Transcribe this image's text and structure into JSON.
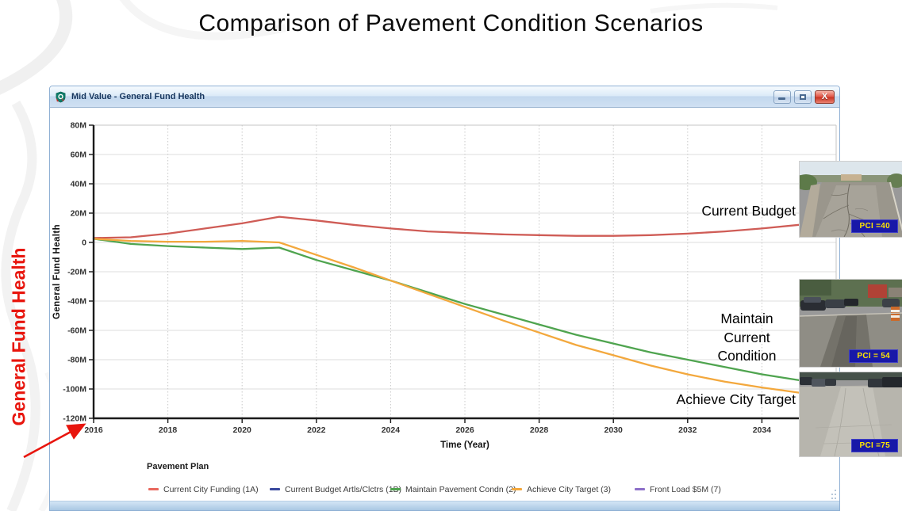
{
  "slide": {
    "title": "Comparison of Pavement Condition Scenarios",
    "side_callout": "General Fund Health"
  },
  "window": {
    "title": "Mid Value - General Fund Health",
    "close_glyph": "X"
  },
  "chart_data": {
    "type": "line",
    "xlabel": "Time (Year)",
    "ylabel": "General Fund Health",
    "xlim": [
      2016,
      2036
    ],
    "ylim": [
      -120,
      80
    ],
    "grid": true,
    "x_tick_years": [
      2016,
      2018,
      2020,
      2022,
      2024,
      2026,
      2028,
      2030,
      2032,
      2034
    ],
    "y_tick_values": [
      80,
      60,
      40,
      20,
      0,
      -20,
      -40,
      -60,
      -80,
      -100,
      -120
    ],
    "y_tick_labels": [
      "80M",
      "60M",
      "40M",
      "20M",
      "0",
      "-20M",
      "-40M",
      "-60M",
      "-80M",
      "-100M",
      "-120M"
    ],
    "x": [
      2016,
      2017,
      2018,
      2019,
      2020,
      2021,
      2022,
      2023,
      2024,
      2025,
      2026,
      2027,
      2028,
      2029,
      2030,
      2031,
      2032,
      2033,
      2034,
      2035
    ],
    "series": [
      {
        "name": "Current City Funding (1A)",
        "color": "#cf5c56",
        "values": [
          3,
          3.5,
          6,
          9.5,
          13,
          17.5,
          15,
          12,
          9.5,
          7.5,
          6.5,
          5.5,
          5,
          4.5,
          4.5,
          5,
          6,
          7.5,
          9.5,
          12
        ]
      },
      {
        "name": "Maintain Pavement Condn (2)",
        "color": "#4fa44f",
        "values": [
          2.5,
          -1,
          -2.5,
          -3.5,
          -4.5,
          -3.5,
          -12,
          -19,
          -26,
          -34,
          -42,
          -49,
          -56,
          -63,
          -69,
          -75,
          -80,
          -85,
          -90,
          -94
        ]
      },
      {
        "name": "Achieve City Target (3)",
        "color": "#f3a83d",
        "values": [
          2.5,
          1,
          0.5,
          0.5,
          1,
          0,
          -8.5,
          -17,
          -26,
          -35,
          -44,
          -53,
          -61.5,
          -70,
          -77,
          -84,
          -90,
          -95,
          -99,
          -102.5
        ]
      }
    ],
    "legend": {
      "title": "Pavement Plan",
      "items": [
        {
          "label": "Current City Funding (1A)",
          "color": "#e9675d"
        },
        {
          "label": "Current Budget Artls/Clctrs (1B)",
          "color": "#39499e"
        },
        {
          "label": "Maintain Pavement Condn (2)",
          "color": "#4fa44f"
        },
        {
          "label": "Achieve City Target (3)",
          "color": "#f3a83d"
        },
        {
          "label": "Front Load $5M (7)",
          "color": "#8d6fc8"
        }
      ]
    },
    "annotations": {
      "current_budget": "Current Budget",
      "maintain": "Maintain\nCurrent\nCondition",
      "achieve": "Achieve City Target"
    }
  },
  "photos": [
    {
      "name": "cracked residential pavement",
      "pci_label": "PCI =40"
    },
    {
      "name": "worn urban street with traffic",
      "pci_label": "PCI = 54"
    },
    {
      "name": "smooth pavement with parked cars",
      "pci_label": "PCI =75"
    }
  ]
}
